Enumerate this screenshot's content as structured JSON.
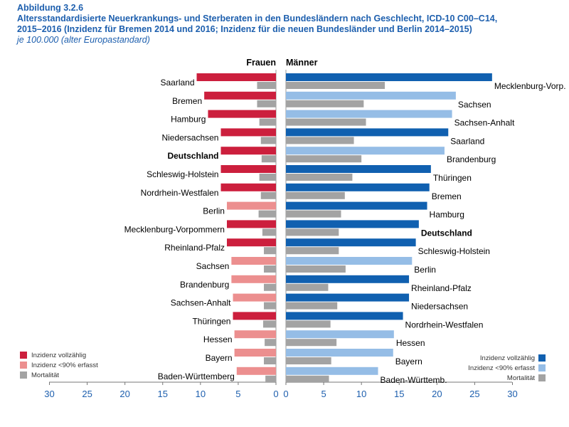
{
  "figure": {
    "number": "Abbildung 3.2.6",
    "title_line1": "Altersstandardisierte Neuerkrankungs- und Sterberaten in den Bundesländern nach Geschlecht, ICD-10 C00–C14,",
    "title_line2": "2015–2016 (Inzidenz für Bremen 2014 und 2016; Inzidenz für die neuen Bundesländer und Berlin 2014–2015)",
    "subtitle": "je 100.000 (alter Europastandard)"
  },
  "colors": {
    "complete": "#1060b0",
    "incomplete": "#95bde6",
    "mortality": "#a3a3a3",
    "women_complete": "#cc1f3d",
    "women_incomplete": "#ec8f8f",
    "axis_text": "#1d5fae"
  },
  "legend": {
    "complete": "Inzidenz vollzählig",
    "incomplete": "Inzidenz <90% erfasst",
    "mortality": "Mortalität"
  },
  "chart_data": [
    {
      "type": "bar",
      "panel": "women",
      "title": "Frauen",
      "xlim": [
        0,
        30
      ],
      "ticks": [
        "30",
        "25",
        "20",
        "15",
        "10",
        "5",
        "0"
      ],
      "categories": [
        "Saarland",
        "Bremen",
        "Hamburg",
        "Niedersachsen",
        "Deutschland",
        "Schleswig-Holstein",
        "Nordrhein-Westfalen",
        "Berlin",
        "Mecklenburg-Vorpommern",
        "Rheinland-Pfalz",
        "Sachsen",
        "Brandenburg",
        "Sachsen-Anhalt",
        "Thüringen",
        "Hessen",
        "Bayern",
        "Baden-Württemberg"
      ],
      "highlight": "Deutschland",
      "incidence": [
        10.5,
        9.5,
        9.0,
        7.3,
        7.3,
        7.3,
        7.3,
        6.5,
        6.5,
        6.5,
        5.9,
        5.9,
        5.7,
        5.7,
        5.5,
        5.5,
        5.2
      ],
      "incidence_status": [
        "complete",
        "complete",
        "complete",
        "complete",
        "complete",
        "complete",
        "complete",
        "incomplete",
        "complete",
        "complete",
        "incomplete",
        "incomplete",
        "incomplete",
        "complete",
        "incomplete",
        "incomplete",
        "incomplete"
      ],
      "mortality": [
        2.5,
        2.5,
        2.2,
        2.0,
        1.9,
        2.2,
        2.0,
        2.3,
        1.8,
        1.6,
        1.6,
        1.6,
        1.6,
        1.7,
        1.5,
        1.6,
        1.4
      ]
    },
    {
      "type": "bar",
      "panel": "men",
      "title": "Männer",
      "xlim": [
        0,
        30
      ],
      "ticks": [
        "0",
        "5",
        "10",
        "15",
        "20",
        "25",
        "30"
      ],
      "categories": [
        "Mecklenburg-Vorp.",
        "Sachsen",
        "Sachsen-Anhalt",
        "Saarland",
        "Brandenburg",
        "Thüringen",
        "Bremen",
        "Hamburg",
        "Deutschland",
        "Schleswig-Holstein",
        "Berlin",
        "Rheinland-Pfalz",
        "Niedersachsen",
        "Nordrhein-Westfalen",
        "Hessen",
        "Bayern",
        "Baden-Württemb."
      ],
      "highlight": "Deutschland",
      "incidence": [
        27.3,
        22.5,
        22.0,
        21.5,
        21.0,
        19.2,
        19.0,
        18.7,
        17.6,
        17.2,
        16.7,
        16.3,
        16.3,
        15.5,
        14.3,
        14.2,
        12.2
      ],
      "incidence_status": [
        "complete",
        "incomplete",
        "incomplete",
        "complete",
        "incomplete",
        "complete",
        "complete",
        "complete",
        "complete",
        "complete",
        "incomplete",
        "complete",
        "complete",
        "complete",
        "incomplete",
        "incomplete",
        "incomplete"
      ],
      "mortality": [
        13.1,
        10.3,
        10.6,
        9.0,
        10.0,
        8.8,
        7.8,
        7.3,
        7.0,
        7.0,
        7.9,
        5.6,
        6.8,
        5.9,
        6.7,
        6.0,
        5.7
      ]
    }
  ]
}
